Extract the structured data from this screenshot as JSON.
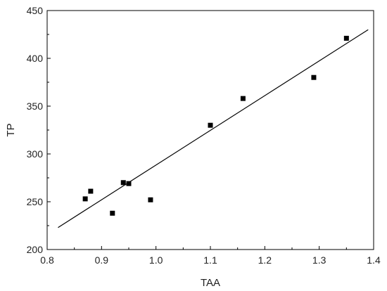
{
  "chart_data": {
    "type": "scatter",
    "xlabel": "TAA",
    "ylabel": "TP",
    "xlim": [
      0.8,
      1.4
    ],
    "ylim": [
      200,
      450
    ],
    "x_ticks": [
      0.8,
      0.9,
      1.0,
      1.1,
      1.2,
      1.3,
      1.4
    ],
    "x_tick_labels": [
      "0.8",
      "0.9",
      "1.0",
      "1.1",
      "1.2",
      "1.3",
      "1.4"
    ],
    "y_ticks": [
      200,
      250,
      300,
      350,
      400,
      450
    ],
    "y_tick_labels": [
      "200",
      "250",
      "300",
      "350",
      "400",
      "450"
    ],
    "grid": false,
    "series": [
      {
        "points": [
          {
            "x": 0.87,
            "y": 253
          },
          {
            "x": 0.88,
            "y": 261
          },
          {
            "x": 0.92,
            "y": 238
          },
          {
            "x": 0.94,
            "y": 270
          },
          {
            "x": 0.95,
            "y": 269
          },
          {
            "x": 0.99,
            "y": 252
          },
          {
            "x": 1.1,
            "y": 330
          },
          {
            "x": 1.16,
            "y": 358
          },
          {
            "x": 1.29,
            "y": 380
          },
          {
            "x": 1.35,
            "y": 421
          }
        ],
        "marker": "square",
        "color": "#000000"
      }
    ],
    "fit_line": {
      "from": {
        "x": 0.82,
        "y": 223
      },
      "to": {
        "x": 1.39,
        "y": 430
      },
      "color": "#000000"
    }
  }
}
